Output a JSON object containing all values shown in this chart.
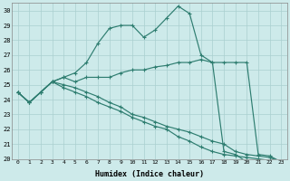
{
  "xlabel": "Humidex (Indice chaleur)",
  "background_color": "#cdeaea",
  "grid_color": "#aacfcf",
  "line_color": "#2e7d70",
  "x": [
    0,
    1,
    2,
    3,
    4,
    5,
    6,
    7,
    8,
    9,
    10,
    11,
    12,
    13,
    14,
    15,
    16,
    17,
    18,
    19,
    20,
    21,
    22,
    23
  ],
  "line1": [
    24.5,
    23.8,
    24.5,
    25.2,
    25.5,
    25.8,
    26.5,
    27.8,
    28.8,
    29.0,
    29.0,
    28.2,
    28.7,
    29.5,
    30.3,
    29.8,
    27.0,
    26.5,
    20.5,
    20.3,
    19.8,
    null,
    null,
    null
  ],
  "line2": [
    24.5,
    23.8,
    24.5,
    25.2,
    25.5,
    25.2,
    25.5,
    25.5,
    25.5,
    25.8,
    26.0,
    26.0,
    26.2,
    26.3,
    26.5,
    26.5,
    26.7,
    26.5,
    26.5,
    26.5,
    26.5,
    20.3,
    20.2,
    19.8
  ],
  "line3": [
    24.5,
    23.8,
    24.5,
    25.2,
    25.0,
    24.8,
    24.5,
    24.2,
    23.8,
    23.5,
    23.0,
    22.8,
    22.5,
    22.2,
    22.0,
    21.8,
    21.5,
    21.2,
    21.0,
    20.5,
    20.3,
    20.2,
    20.1,
    19.8
  ],
  "line4": [
    24.5,
    23.8,
    24.5,
    25.2,
    24.8,
    24.5,
    24.2,
    23.8,
    23.5,
    23.2,
    22.8,
    22.5,
    22.2,
    22.0,
    21.5,
    21.2,
    20.8,
    20.5,
    20.3,
    20.2,
    20.1,
    20.0,
    19.9,
    19.8
  ],
  "ylim": [
    20,
    30.5
  ],
  "yticks": [
    20,
    21,
    22,
    23,
    24,
    25,
    26,
    27,
    28,
    29,
    30
  ],
  "xticks": [
    0,
    1,
    2,
    3,
    4,
    5,
    6,
    7,
    8,
    9,
    10,
    11,
    12,
    13,
    14,
    15,
    16,
    17,
    18,
    19,
    20,
    21,
    22,
    23
  ]
}
